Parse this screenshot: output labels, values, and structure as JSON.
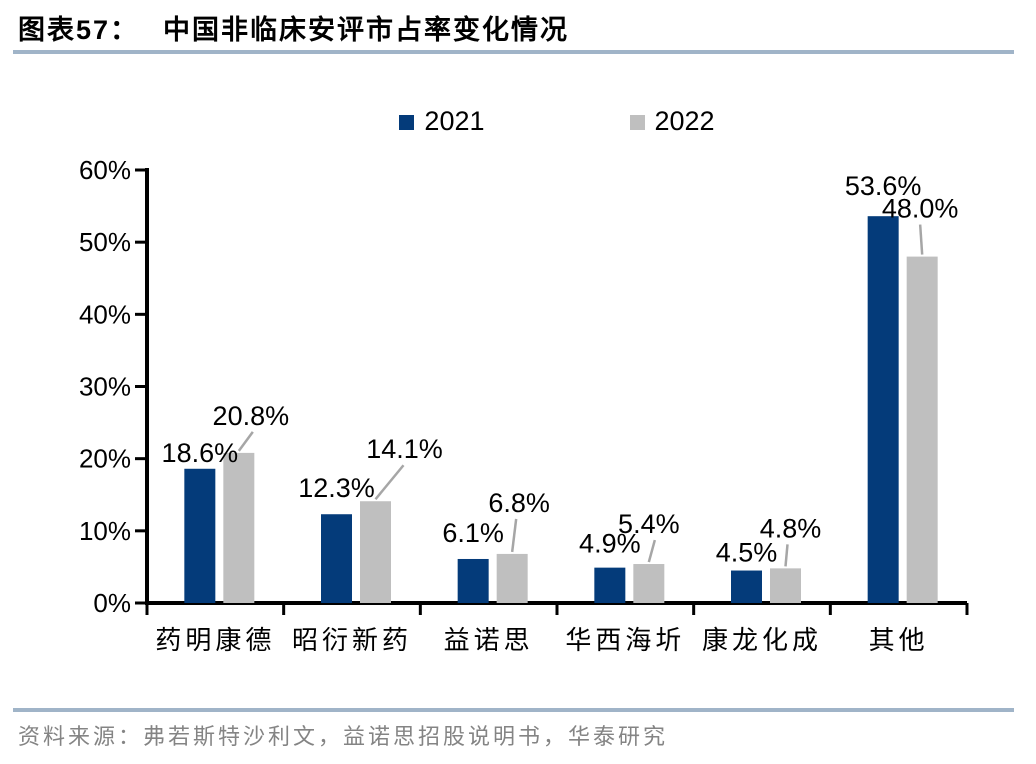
{
  "header": {
    "figure_no": "图表57：",
    "title": "中国非临床安评市占率变化情况"
  },
  "footer": {
    "source": "资料来源：弗若斯特沙利文，益诺思招股说明书，华泰研究"
  },
  "colors": {
    "series_2021": "#043b7a",
    "series_2022": "#bfbfbf",
    "rule_line": "#a0b4c8",
    "leader_line": "#a6a6a6",
    "axis": "#000000",
    "source_text": "#848484"
  },
  "chart_data": {
    "type": "bar",
    "title": "中国非临床安评市占率变化情况",
    "categories": [
      "药明康德",
      "昭衍新药",
      "益诺思",
      "华西海圻",
      "康龙化成",
      "其他"
    ],
    "series": [
      {
        "name": "2021",
        "color": "#043b7a",
        "values": [
          18.6,
          12.3,
          6.1,
          4.9,
          4.5,
          53.6
        ],
        "labels": [
          "18.6%",
          "12.3%",
          "6.1%",
          "4.9%",
          "4.5%",
          "53.6%"
        ]
      },
      {
        "name": "2022",
        "color": "#bfbfbf",
        "values": [
          20.8,
          14.1,
          6.8,
          5.4,
          4.8,
          48.0
        ],
        "labels": [
          "20.8%",
          "14.1%",
          "6.8%",
          "5.4%",
          "4.8%",
          "48.0%"
        ]
      }
    ],
    "xlabel": "",
    "ylabel": "",
    "ylim": [
      0,
      60
    ],
    "y_ticks": [
      "0%",
      "10%",
      "20%",
      "30%",
      "40%",
      "50%",
      "60%"
    ],
    "grid": false,
    "legend_position": "top",
    "value_labels_shown": true,
    "leader_lines_on_2022_labels": true
  }
}
